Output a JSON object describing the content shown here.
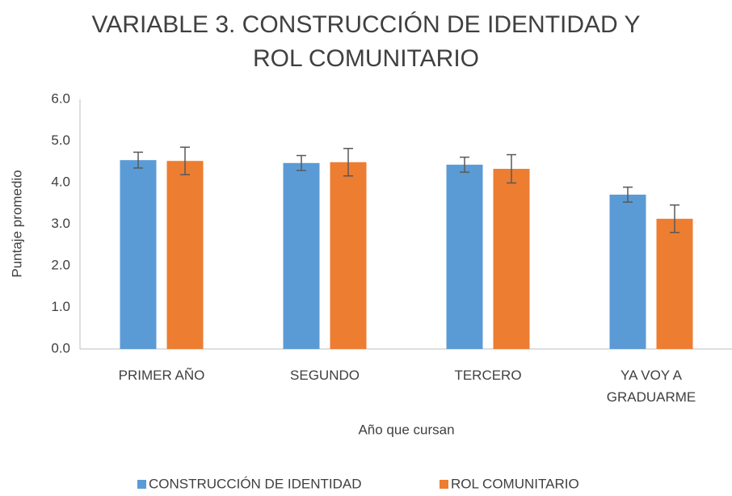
{
  "chart_data": {
    "type": "bar",
    "title": "VARIABLE 3. CONSTRUCCIÓN DE IDENTIDAD Y ROL COMUNITARIO",
    "x_label": "Año que cursan",
    "y_label": "Puntaje promedio",
    "categories": [
      "PRIMER AÑO",
      "SEGUNDO",
      "TERCERO",
      "YA VOY A GRADUARME"
    ],
    "series": [
      {
        "name": "CONSTRUCCIÓN DE IDENTIDAD",
        "color": "#5b9bd5",
        "values": [
          4.54,
          4.47,
          4.43,
          3.71
        ],
        "errors": [
          0.19,
          0.18,
          0.18,
          0.18
        ]
      },
      {
        "name": "ROL COMUNITARIO",
        "color": "#ed7d31",
        "values": [
          4.52,
          4.49,
          4.33,
          3.13
        ],
        "errors": [
          0.33,
          0.33,
          0.34,
          0.33
        ]
      }
    ],
    "ylim": [
      0,
      6
    ],
    "yticks": [
      {
        "value": 0,
        "label": "0.0"
      },
      {
        "value": 1,
        "label": "1.0"
      },
      {
        "value": 2,
        "label": "2.0"
      },
      {
        "value": 3,
        "label": "3.0"
      },
      {
        "value": 4,
        "label": "4.0"
      },
      {
        "value": 5,
        "label": "5.0"
      },
      {
        "value": 6,
        "label": "6.0"
      }
    ],
    "grid": false,
    "legend": "bottom"
  }
}
